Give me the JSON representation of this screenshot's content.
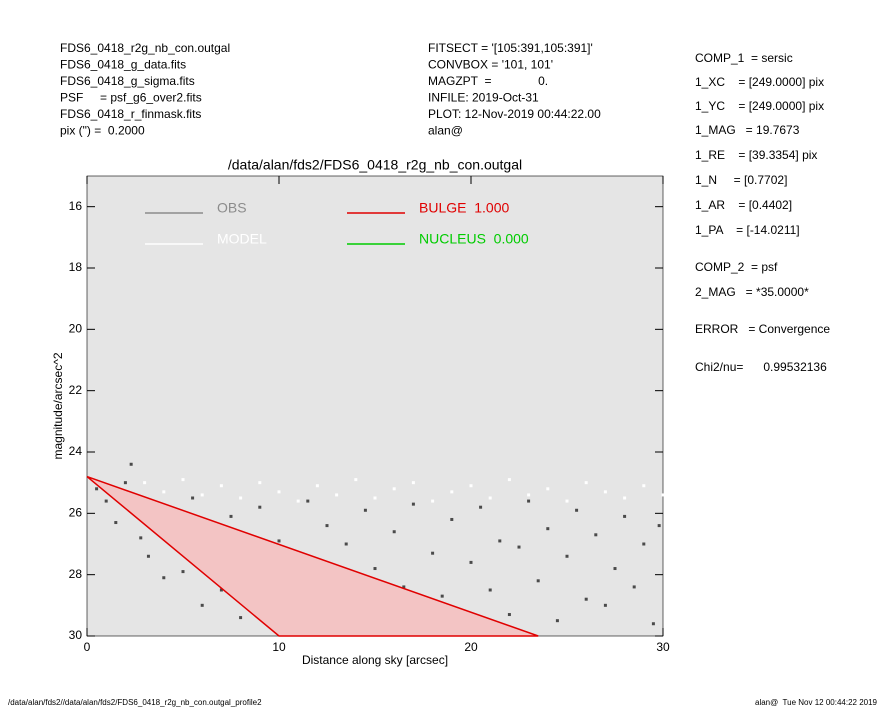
{
  "header": {
    "left": [
      "FDS6_0418_r2g_nb_con.outgal",
      "FDS6_0418_g_data.fits",
      "FDS6_0418_g_sigma.fits",
      "PSF     = psf_g6_over2.fits",
      "FDS6_0418_r_finmask.fits",
      "pix (\") =  0.2000"
    ],
    "middle": [
      "FITSECT = '[105:391,105:391]'",
      "CONVBOX = '101, 101'",
      "MAGZPT  =              0.",
      "INFILE: 2019-Oct-31",
      "PLOT: 12-Nov-2019 00:44:22.00",
      "alan@"
    ],
    "right": [
      "COMP_1  = sersic",
      "1_XC    = [249.0000] pix",
      "1_YC    = [249.0000] pix",
      "1_MAG   = 19.7673",
      "1_RE    = [39.3354] pix",
      "1_N     = [0.7702]",
      "1_AR    = [0.4402]",
      "1_PA    = [-14.0211]",
      "COMP_2  = psf",
      "2_MAG   = *35.0000*",
      "ERROR   = Convergence",
      "Chi2/nu=      0.99532136"
    ]
  },
  "footer": {
    "left": "/data/alan/fds2//data/alan/fds2/FDS6_0418_r2g_nb_con.outgal_profile2",
    "right": "alan@  Tue Nov 12 00:44:22 2019"
  },
  "chart_data": {
    "type": "scatter",
    "title": "/data/alan/fds2/FDS6_0418_r2g_nb_con.outgal",
    "x_label": "Distance along sky [arcsec]",
    "y_label": "magnitude/arcsec^2",
    "xlim": [
      0,
      30
    ],
    "ylim": [
      15,
      30
    ],
    "y_inverted": true,
    "xticks": [
      0,
      10,
      20,
      30
    ],
    "yticks": [
      16,
      18,
      20,
      22,
      24,
      26,
      28,
      30
    ],
    "series": [
      {
        "name": "OBS",
        "color": "#4a4a4a",
        "legend_color": "#8c8c8c",
        "style": "points",
        "x": [
          0.5,
          1,
          1.5,
          2,
          2.3,
          2.8,
          3.2,
          3.6,
          4,
          4.5,
          5,
          5.5,
          6,
          6.5,
          7,
          7.5,
          8,
          8.5,
          9,
          9.5,
          10,
          10.5,
          11,
          11.5,
          12,
          12.5,
          13,
          13.5,
          14,
          14.5,
          15,
          15.5,
          16,
          16.5,
          17,
          17.5,
          18,
          18.5,
          19,
          19.5,
          20,
          20.5,
          21,
          21.5,
          22,
          22.5,
          23,
          23.5,
          24,
          24.5,
          25,
          25.5,
          26,
          26.5,
          27,
          27.5,
          28,
          28.5,
          29,
          29.5,
          29.8
        ],
        "values": [
          25.2,
          25.6,
          26.3,
          25.0,
          24.4,
          26.8,
          27.4,
          25.9,
          28.1,
          26.6,
          27.9,
          25.5,
          29.0,
          27.2,
          28.5,
          26.1,
          29.4,
          27.7,
          25.8,
          28.8,
          26.9,
          29.6,
          27.5,
          25.6,
          28.3,
          26.4,
          29.2,
          27.0,
          28.9,
          25.9,
          27.8,
          29.7,
          26.6,
          28.4,
          25.7,
          29.1,
          27.3,
          28.7,
          26.2,
          29.8,
          27.6,
          25.8,
          28.5,
          26.9,
          29.3,
          27.1,
          25.6,
          28.2,
          26.5,
          29.5,
          27.4,
          25.9,
          28.8,
          26.7,
          29.0,
          27.8,
          26.1,
          28.4,
          27.0,
          29.6,
          26.4
        ]
      },
      {
        "name": "MODEL",
        "color": "#ffffff",
        "style": "points",
        "x": [
          3,
          4,
          5,
          6,
          7,
          8,
          9,
          10,
          11,
          12,
          13,
          14,
          15,
          16,
          17,
          18,
          19,
          20,
          21,
          22,
          23,
          24,
          25,
          26,
          27,
          28,
          29,
          30
        ],
        "values": [
          25.0,
          25.3,
          24.9,
          25.4,
          25.1,
          25.5,
          25.0,
          25.3,
          25.6,
          25.1,
          25.4,
          24.9,
          25.5,
          25.2,
          25.0,
          25.6,
          25.3,
          25.1,
          25.5,
          24.9,
          25.4,
          25.2,
          25.6,
          25.0,
          25.3,
          25.5,
          25.1,
          25.4
        ]
      },
      {
        "name": "BULGE  1.000",
        "color": "#e00000",
        "fill": "#f3c4c4",
        "style": "area",
        "x": [
          0,
          23.5,
          10,
          0
        ],
        "values": [
          24.8,
          30,
          30,
          24.8
        ]
      },
      {
        "name": "NUCLEUS  0.000",
        "color": "#00cc00",
        "style": "points",
        "x": [],
        "values": []
      }
    ]
  }
}
